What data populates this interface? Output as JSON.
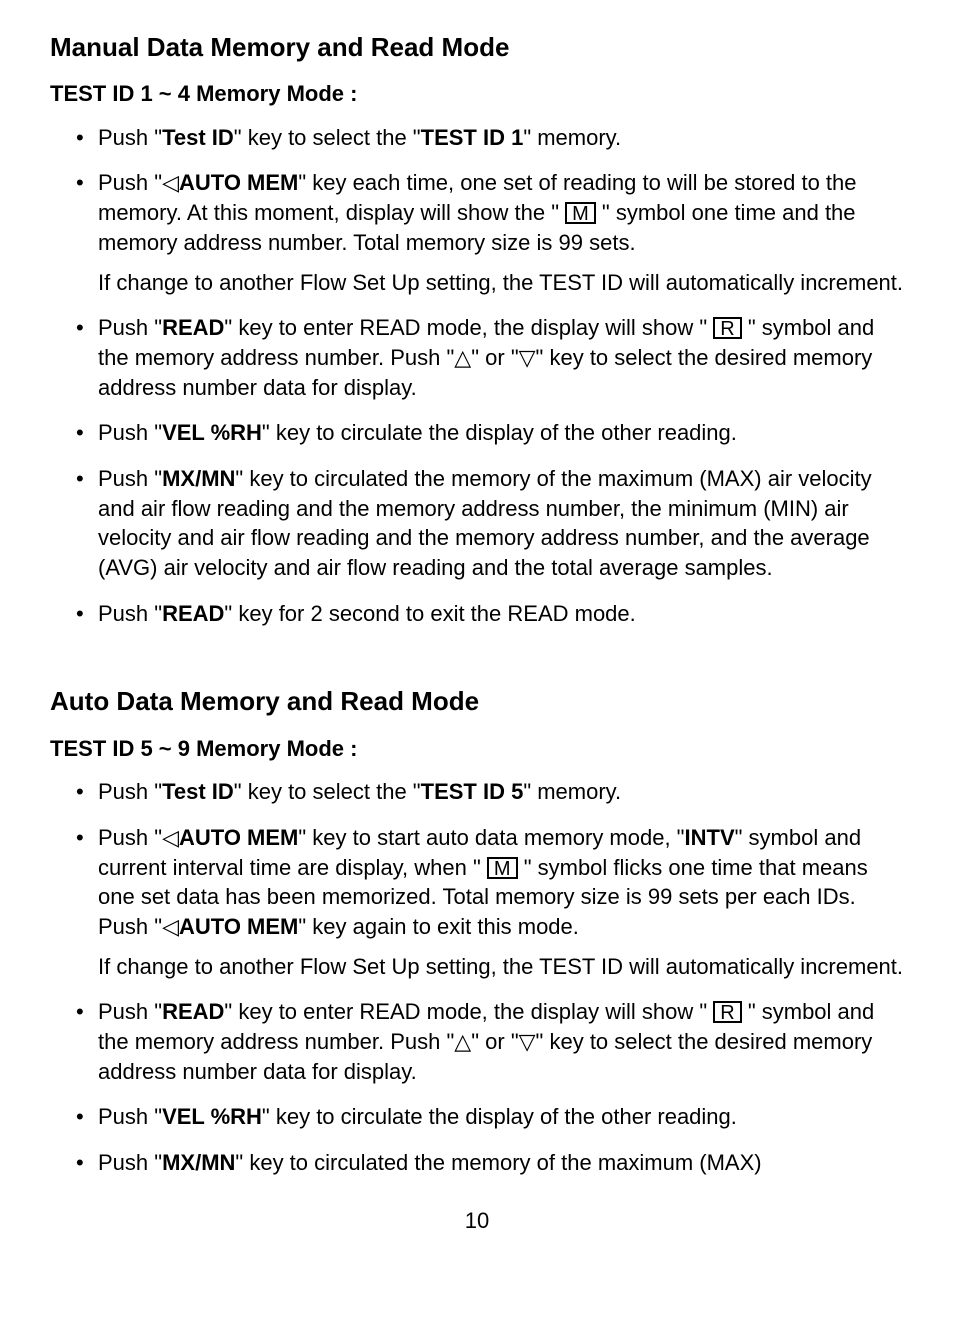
{
  "section1": {
    "heading": "Manual Data Memory and Read Mode",
    "subheading": "TEST ID 1 ~ 4 Memory Mode :",
    "items": {
      "i1": {
        "t1": "Push \"",
        "b1": "Test ID",
        "t2": "\" key to select the \"",
        "b2": "TEST ID 1",
        "t3": "\" memory."
      },
      "i2": {
        "t1": "Push \"◁",
        "b1": "AUTO MEM",
        "t2": "\" key each time, one set of reading to will be stored to the memory.  At this moment, display will show the \" ",
        "box": "M",
        "t3": " \" symbol one time and the memory address number.  Total memory size is 99 sets.",
        "para": "If change to another Flow Set Up setting, the TEST ID will automatically increment."
      },
      "i3": {
        "t1": "Push \"",
        "b1": "READ",
        "t2": "\" key to enter READ mode, the display will show \" ",
        "box": "R",
        "t3": " \" symbol and the memory address number.  Push \"△\" or \"▽\" key to select the desired memory address number data for display."
      },
      "i4": {
        "t1": "Push \"",
        "b1": "VEL %RH",
        "t2": "\" key to circulate the display of the other reading."
      },
      "i5": {
        "t1": "Push \"",
        "b1": "MX/MN",
        "t2": "\" key to circulated the memory of the maximum (MAX) air velocity and air flow reading and the memory address number, the minimum (MIN) air velocity and air flow reading and the memory address number, and the average (AVG) air velocity and air flow reading and the total average samples."
      },
      "i6": {
        "t1": "Push \"",
        "b1": "READ",
        "t2": "\" key for 2 second to exit the READ mode."
      }
    }
  },
  "section2": {
    "heading": "Auto Data Memory and Read Mode",
    "subheading": "TEST ID 5 ~ 9 Memory Mode :",
    "items": {
      "i1": {
        "t1": "Push \"",
        "b1": "Test ID",
        "t2": "\" key to select the \"",
        "b2": "TEST ID 5",
        "t3": "\" memory."
      },
      "i2": {
        "t1": " Push \"◁",
        "b1": "AUTO MEM",
        "t2": "\" key to start auto data memory mode, \"",
        "b2": "INTV",
        "t3": "\" symbol and current interval time are display, when \" ",
        "box": "M",
        "t4": " \" symbol flicks one time that means one set data has been memorized.  Total memory size is 99 sets per each IDs.  Push \"◁",
        "b3": "AUTO MEM",
        "t5": "\" key again to exit this mode.",
        "para": "If change to another Flow Set Up setting, the TEST ID will automatically increment."
      },
      "i3": {
        "t1": "Push \"",
        "b1": "READ",
        "t2": "\" key to enter READ mode, the display will show \" ",
        "box": "R",
        "t3": " \" symbol and the memory address number.  Push \"△\" or \"▽\" key to select the desired memory address number data for display."
      },
      "i4": {
        "t1": "Push \"",
        "b1": "VEL %RH",
        "t2": "\" key to circulate the display of the other reading."
      },
      "i5": {
        "t1": "Push \"",
        "b1": "MX/MN",
        "t2": "\" key to circulated the memory of the maximum (MAX)"
      }
    }
  },
  "pageNumber": "10"
}
